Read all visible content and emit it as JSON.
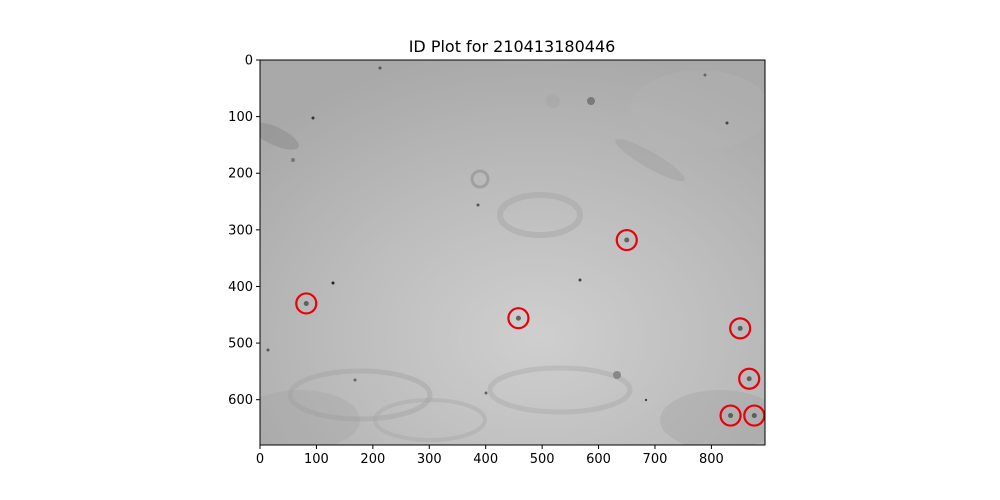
{
  "chart_data": {
    "type": "scatter",
    "title": "ID Plot for 210413180446",
    "xlabel": "",
    "ylabel": "",
    "xlim": [
      0,
      895
    ],
    "ylim": [
      680,
      0
    ],
    "xticks": [
      0,
      100,
      200,
      300,
      400,
      500,
      600,
      700,
      800
    ],
    "yticks": [
      0,
      100,
      200,
      300,
      400,
      500,
      600
    ],
    "grid": false,
    "background": "grayscale-image",
    "marker_color": "#e8000b",
    "series": [
      {
        "marker": "circle-outline",
        "points": [
          {
            "x": 82,
            "y": 430
          },
          {
            "x": 458,
            "y": 456
          },
          {
            "x": 650,
            "y": 318
          },
          {
            "x": 851,
            "y": 474
          },
          {
            "x": 867,
            "y": 563
          },
          {
            "x": 834,
            "y": 628
          },
          {
            "x": 876,
            "y": 628
          }
        ]
      }
    ]
  }
}
